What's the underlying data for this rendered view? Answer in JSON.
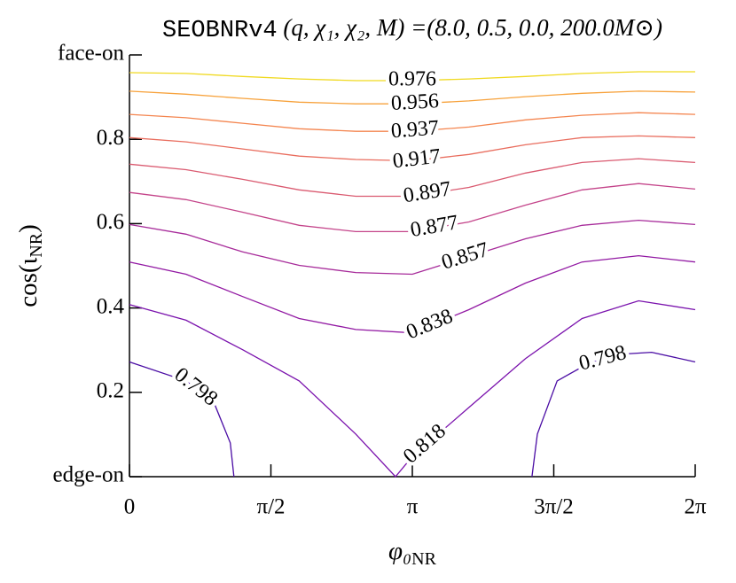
{
  "chart_data": {
    "type": "contour",
    "title_code": "SEOBNRv4",
    "title_rest": " (q, χ₁, χ₂, M) =(8.0, 0.5, 0.0, 200.0M⊙)",
    "x_label": {
      "base": "φ₀",
      "sub": "NR"
    },
    "y_label": {
      "base": "cos(ι",
      "sub": "NR",
      "close": ")"
    },
    "xlim": [
      0,
      6.2832
    ],
    "ylim": [
      0,
      1
    ],
    "xticks": [
      0,
      {
        "value": 1.5708,
        "label": "π/2"
      },
      {
        "value": 3.1416,
        "label": "π"
      },
      {
        "value": 4.7124,
        "label": "3π/2"
      },
      {
        "value": 6.2832,
        "label": "2π"
      }
    ],
    "yticks": [
      {
        "value": 0,
        "label": "edge-on"
      },
      0.2,
      0.4,
      0.6,
      0.8,
      {
        "value": 1,
        "label": "face-on"
      }
    ],
    "series": [
      {
        "level": 0.976,
        "color": "#f0d91f",
        "x": [
          0,
          0.628,
          1.257,
          1.885,
          2.513,
          3.142,
          3.77,
          4.398,
          5.027,
          5.655,
          6.283
        ],
        "y": [
          0.958,
          0.956,
          0.949,
          0.943,
          0.939,
          0.939,
          0.943,
          0.949,
          0.956,
          0.96,
          0.96
        ]
      },
      {
        "level": 0.956,
        "color": "#f7a23c",
        "x": [
          0,
          0.628,
          1.257,
          1.885,
          2.513,
          3.142,
          3.77,
          4.398,
          5.027,
          5.655,
          6.283
        ],
        "y": [
          0.914,
          0.907,
          0.897,
          0.888,
          0.884,
          0.884,
          0.891,
          0.901,
          0.909,
          0.914,
          0.912
        ]
      },
      {
        "level": 0.937,
        "color": "#f4854f",
        "x": [
          0,
          0.628,
          1.257,
          1.885,
          2.513,
          3.142,
          3.77,
          4.398,
          5.027,
          5.655,
          6.283
        ],
        "y": [
          0.859,
          0.851,
          0.838,
          0.825,
          0.819,
          0.819,
          0.829,
          0.846,
          0.857,
          0.863,
          0.859
        ]
      },
      {
        "level": 0.917,
        "color": "#e96d5e",
        "x": [
          0,
          0.628,
          1.257,
          1.885,
          2.513,
          3.142,
          3.77,
          4.398,
          5.027,
          5.655,
          6.283
        ],
        "y": [
          0.804,
          0.794,
          0.777,
          0.76,
          0.752,
          0.749,
          0.764,
          0.787,
          0.804,
          0.808,
          0.804
        ]
      },
      {
        "level": 0.897,
        "color": "#da5a70",
        "x": [
          0,
          0.628,
          1.257,
          1.885,
          2.513,
          3.142,
          3.77,
          4.398,
          5.027,
          5.655,
          6.283
        ],
        "y": [
          0.741,
          0.728,
          0.705,
          0.68,
          0.665,
          0.665,
          0.686,
          0.72,
          0.745,
          0.754,
          0.745
        ]
      },
      {
        "level": 0.877,
        "color": "#c4448a",
        "x": [
          0,
          0.628,
          1.257,
          1.885,
          2.513,
          3.142,
          3.77,
          4.398,
          5.027,
          5.655,
          6.283
        ],
        "y": [
          0.674,
          0.657,
          0.627,
          0.596,
          0.581,
          0.581,
          0.604,
          0.644,
          0.68,
          0.695,
          0.682
        ]
      },
      {
        "level": 0.857,
        "color": "#a72b9a",
        "x": [
          0,
          0.628,
          1.257,
          1.885,
          2.513,
          3.142,
          3.77,
          4.398,
          5.027,
          5.655,
          6.283
        ],
        "y": [
          0.598,
          0.575,
          0.533,
          0.501,
          0.484,
          0.48,
          0.522,
          0.564,
          0.596,
          0.608,
          0.598
        ]
      },
      {
        "level": 0.838,
        "color": "#9219a3",
        "x": [
          0,
          0.628,
          1.257,
          1.885,
          2.513,
          3.142,
          3.77,
          4.398,
          5.027,
          5.655,
          6.283
        ],
        "y": [
          0.509,
          0.48,
          0.427,
          0.375,
          0.349,
          0.341,
          0.396,
          0.459,
          0.509,
          0.524,
          0.509
        ]
      },
      {
        "level": 0.818,
        "color": "#7a12ad",
        "x": [
          0,
          0.628,
          1.257,
          1.885,
          2.513,
          2.954,
          3.142,
          3.77,
          4.398,
          5.027,
          5.655,
          6.283
        ],
        "y": [
          0.408,
          0.371,
          0.301,
          0.227,
          0.101,
          0,
          0.048,
          0.164,
          0.28,
          0.375,
          0.417,
          0.396
        ]
      },
      {
        "level": 0.798,
        "color": "#4a0ca4",
        "x": [
          0,
          0.628,
          0.94,
          1.12,
          1.16,
          null,
          4.47,
          4.53,
          4.75,
          5.1,
          5.5,
          5.8,
          6.283
        ],
        "y": [
          0.272,
          0.227,
          0.175,
          0.08,
          0,
          null,
          0,
          0.101,
          0.227,
          0.269,
          0.291,
          0.295,
          0.272
        ]
      }
    ]
  }
}
